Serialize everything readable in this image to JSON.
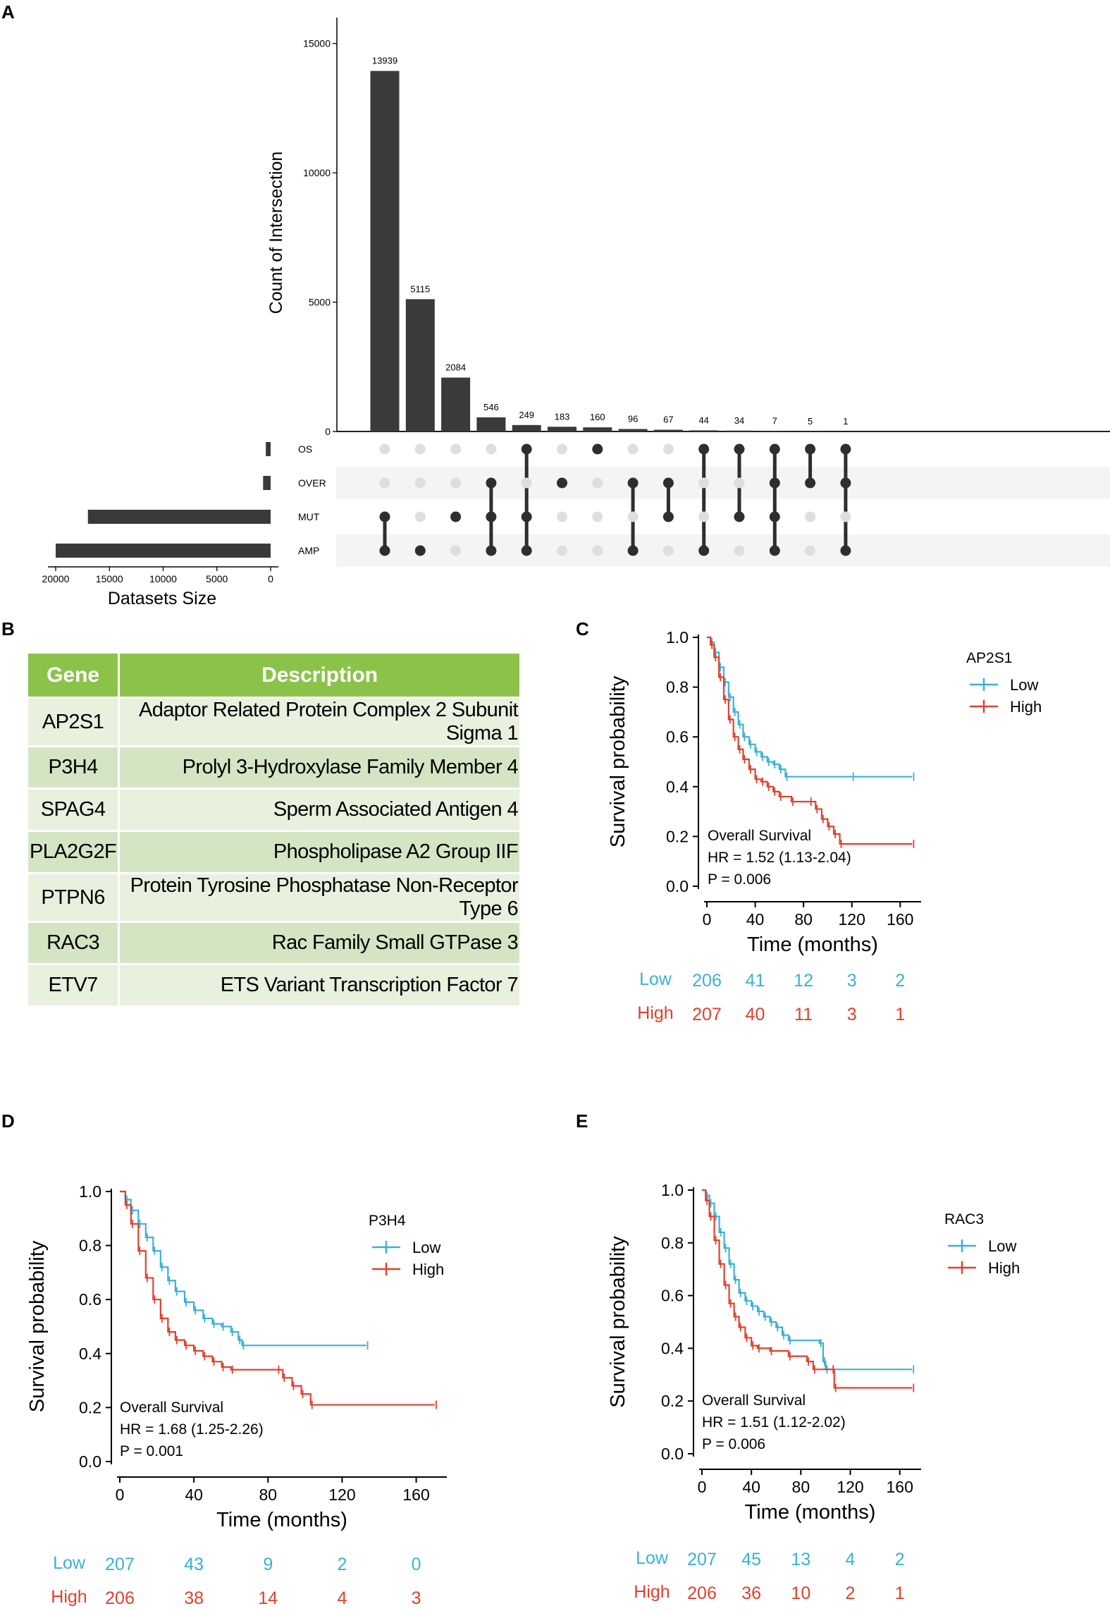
{
  "panels": {
    "a": "A",
    "b": "B",
    "c": "C",
    "d": "D",
    "e": "E"
  },
  "chart_data": [
    {
      "type": "bar",
      "subtype": "upset",
      "panel": "A",
      "ylabel": "Count of Intersection",
      "xlabel_sets": "Datasets Size",
      "y_ticks": [
        0,
        5000,
        10000,
        15000
      ],
      "set_size_ticks": [
        20000,
        15000,
        10000,
        5000,
        0
      ],
      "sets": [
        {
          "name": "OS",
          "size": 450
        },
        {
          "name": "OVER",
          "size": 700
        },
        {
          "name": "MUT",
          "size": 17000
        },
        {
          "name": "AMP",
          "size": 20000
        }
      ],
      "intersections": [
        {
          "value": 13939,
          "label": "13939",
          "members": [
            "MUT",
            "AMP"
          ]
        },
        {
          "value": 5115,
          "label": "5115",
          "members": [
            "AMP"
          ]
        },
        {
          "value": 2084,
          "label": "2084",
          "members": [
            "MUT"
          ]
        },
        {
          "value": 546,
          "label": "546",
          "members": [
            "OVER",
            "MUT",
            "AMP"
          ]
        },
        {
          "value": 249,
          "label": "249",
          "members": [
            "OS",
            "MUT",
            "AMP"
          ]
        },
        {
          "value": 183,
          "label": "183",
          "members": [
            "OVER"
          ]
        },
        {
          "value": 160,
          "label": "160",
          "members": [
            "OS"
          ]
        },
        {
          "value": 96,
          "label": "96",
          "members": [
            "OVER",
            "AMP"
          ]
        },
        {
          "value": 67,
          "label": "67",
          "members": [
            "OVER",
            "MUT"
          ]
        },
        {
          "value": 44,
          "label": "44",
          "members": [
            "OS",
            "AMP"
          ]
        },
        {
          "value": 34,
          "label": "34",
          "members": [
            "OS",
            "MUT"
          ]
        },
        {
          "value": 7,
          "label": "7",
          "members": [
            "OS",
            "OVER",
            "MUT",
            "AMP"
          ]
        },
        {
          "value": 5,
          "label": "5",
          "members": [
            "OS",
            "OVER"
          ]
        },
        {
          "value": 1,
          "label": "1",
          "members": [
            "OS",
            "OVER",
            "AMP"
          ]
        }
      ],
      "ylim": [
        0,
        16000
      ]
    },
    {
      "type": "line",
      "subtype": "kaplan-meier",
      "panel": "C",
      "gene": "AP2S1",
      "xlabel": "Time (months)",
      "ylabel": "Survival probability",
      "x_ticks": [
        0,
        40,
        80,
        120,
        160
      ],
      "y_ticks": [
        0.0,
        0.2,
        0.4,
        0.6,
        0.8,
        1.0
      ],
      "xlim": [
        0,
        175
      ],
      "ylim": [
        0,
        1
      ],
      "stats": {
        "title": "Overall Survival",
        "hr": "HR = 1.52 (1.13-2.04)",
        "p": "P = 0.006"
      },
      "series": [
        {
          "name": "Low",
          "color": "#3bb0d6",
          "points": [
            [
              0,
              1.0
            ],
            [
              3,
              0.98
            ],
            [
              6,
              0.94
            ],
            [
              10,
              0.88
            ],
            [
              14,
              0.82
            ],
            [
              18,
              0.76
            ],
            [
              22,
              0.7
            ],
            [
              26,
              0.65
            ],
            [
              30,
              0.6
            ],
            [
              35,
              0.57
            ],
            [
              40,
              0.54
            ],
            [
              45,
              0.52
            ],
            [
              50,
              0.5
            ],
            [
              55,
              0.49
            ],
            [
              60,
              0.47
            ],
            [
              65,
              0.44
            ],
            [
              120,
              0.44
            ],
            [
              170,
              0.44
            ]
          ],
          "at_risk": [
            "206",
            "41",
            "12",
            "3",
            "2"
          ]
        },
        {
          "name": "High",
          "color": "#e0412e",
          "points": [
            [
              0,
              1.0
            ],
            [
              3,
              0.97
            ],
            [
              6,
              0.92
            ],
            [
              10,
              0.84
            ],
            [
              14,
              0.75
            ],
            [
              18,
              0.67
            ],
            [
              22,
              0.6
            ],
            [
              26,
              0.55
            ],
            [
              30,
              0.51
            ],
            [
              35,
              0.47
            ],
            [
              40,
              0.43
            ],
            [
              45,
              0.42
            ],
            [
              50,
              0.4
            ],
            [
              55,
              0.38
            ],
            [
              60,
              0.36
            ],
            [
              70,
              0.34
            ],
            [
              85,
              0.34
            ],
            [
              90,
              0.31
            ],
            [
              95,
              0.27
            ],
            [
              100,
              0.24
            ],
            [
              105,
              0.21
            ],
            [
              110,
              0.17
            ],
            [
              170,
              0.17
            ]
          ],
          "at_risk": [
            "207",
            "40",
            "11",
            "3",
            "1"
          ]
        }
      ]
    },
    {
      "type": "line",
      "subtype": "kaplan-meier",
      "panel": "D",
      "gene": "P3H4",
      "xlabel": "Time (months)",
      "ylabel": "Survival probability",
      "x_ticks": [
        0,
        40,
        80,
        120,
        160
      ],
      "y_ticks": [
        0.0,
        0.2,
        0.4,
        0.6,
        0.8,
        1.0
      ],
      "xlim": [
        0,
        175
      ],
      "ylim": [
        0,
        1
      ],
      "stats": {
        "title": "Overall Survival",
        "hr": "HR = 1.68 (1.25-2.26)",
        "p": "P = 0.001"
      },
      "series": [
        {
          "name": "Low",
          "color": "#3bb0d6",
          "points": [
            [
              0,
              1.0
            ],
            [
              3,
              0.97
            ],
            [
              6,
              0.93
            ],
            [
              10,
              0.88
            ],
            [
              14,
              0.83
            ],
            [
              18,
              0.78
            ],
            [
              22,
              0.72
            ],
            [
              26,
              0.67
            ],
            [
              30,
              0.63
            ],
            [
              35,
              0.59
            ],
            [
              40,
              0.56
            ],
            [
              45,
              0.53
            ],
            [
              50,
              0.51
            ],
            [
              55,
              0.5
            ],
            [
              60,
              0.48
            ],
            [
              64,
              0.45
            ],
            [
              66,
              0.43
            ],
            [
              133,
              0.43
            ]
          ],
          "at_risk": [
            "207",
            "43",
            "9",
            "2",
            "0"
          ]
        },
        {
          "name": "High",
          "color": "#e0412e",
          "points": [
            [
              0,
              1.0
            ],
            [
              3,
              0.95
            ],
            [
              6,
              0.88
            ],
            [
              10,
              0.78
            ],
            [
              14,
              0.68
            ],
            [
              18,
              0.6
            ],
            [
              22,
              0.53
            ],
            [
              26,
              0.48
            ],
            [
              30,
              0.45
            ],
            [
              35,
              0.43
            ],
            [
              40,
              0.41
            ],
            [
              45,
              0.39
            ],
            [
              50,
              0.37
            ],
            [
              55,
              0.35
            ],
            [
              60,
              0.34
            ],
            [
              85,
              0.34
            ],
            [
              88,
              0.31
            ],
            [
              93,
              0.28
            ],
            [
              98,
              0.25
            ],
            [
              103,
              0.21
            ],
            [
              170,
              0.21
            ]
          ],
          "at_risk": [
            "206",
            "38",
            "14",
            "4",
            "3"
          ]
        }
      ]
    },
    {
      "type": "line",
      "subtype": "kaplan-meier",
      "panel": "E",
      "gene": "RAC3",
      "xlabel": "Time (months)",
      "ylabel": "Survival probability",
      "x_ticks": [
        0,
        40,
        80,
        120,
        160
      ],
      "y_ticks": [
        0.0,
        0.2,
        0.4,
        0.6,
        0.8,
        1.0
      ],
      "xlim": [
        0,
        175
      ],
      "ylim": [
        0,
        1
      ],
      "stats": {
        "title": "Overall Survival",
        "hr": "HR = 1.51 (1.12-2.02)",
        "p": "P = 0.006"
      },
      "series": [
        {
          "name": "Low",
          "color": "#3bb0d6",
          "points": [
            [
              0,
              1.0
            ],
            [
              3,
              0.98
            ],
            [
              6,
              0.95
            ],
            [
              10,
              0.9
            ],
            [
              14,
              0.84
            ],
            [
              18,
              0.78
            ],
            [
              22,
              0.72
            ],
            [
              26,
              0.66
            ],
            [
              30,
              0.61
            ],
            [
              35,
              0.58
            ],
            [
              40,
              0.56
            ],
            [
              45,
              0.54
            ],
            [
              50,
              0.52
            ],
            [
              55,
              0.5
            ],
            [
              60,
              0.48
            ],
            [
              65,
              0.45
            ],
            [
              70,
              0.43
            ],
            [
              95,
              0.42
            ],
            [
              98,
              0.35
            ],
            [
              100,
              0.32
            ],
            [
              170,
              0.32
            ]
          ],
          "at_risk": [
            "207",
            "45",
            "13",
            "4",
            "2"
          ]
        },
        {
          "name": "High",
          "color": "#e0412e",
          "points": [
            [
              0,
              1.0
            ],
            [
              3,
              0.96
            ],
            [
              6,
              0.9
            ],
            [
              10,
              0.81
            ],
            [
              14,
              0.72
            ],
            [
              18,
              0.64
            ],
            [
              22,
              0.57
            ],
            [
              26,
              0.52
            ],
            [
              30,
              0.48
            ],
            [
              35,
              0.44
            ],
            [
              40,
              0.41
            ],
            [
              45,
              0.4
            ],
            [
              55,
              0.39
            ],
            [
              70,
              0.37
            ],
            [
              85,
              0.35
            ],
            [
              90,
              0.32
            ],
            [
              105,
              0.32
            ],
            [
              107,
              0.25
            ],
            [
              170,
              0.25
            ]
          ],
          "at_risk": [
            "206",
            "36",
            "10",
            "2",
            "1"
          ]
        }
      ]
    }
  ],
  "table": {
    "headers": [
      "Gene",
      "Description"
    ],
    "rows": [
      {
        "gene": "AP2S1",
        "description": "Adaptor Related Protein Complex 2 Subunit Sigma 1"
      },
      {
        "gene": "P3H4",
        "description": "Prolyl 3-Hydroxylase Family Member 4"
      },
      {
        "gene": "SPAG4",
        "description": "Sperm Associated Antigen 4"
      },
      {
        "gene": "PLA2G2F",
        "description": "Phospholipase A2 Group IIF"
      },
      {
        "gene": "PTPN6",
        "description": "Protein Tyrosine Phosphatase Non-Receptor Type 6"
      },
      {
        "gene": "RAC3",
        "description": "Rac Family Small GTPase 3"
      },
      {
        "gene": "ETV7",
        "description": "ETS Variant Transcription Factor 7"
      }
    ]
  }
}
